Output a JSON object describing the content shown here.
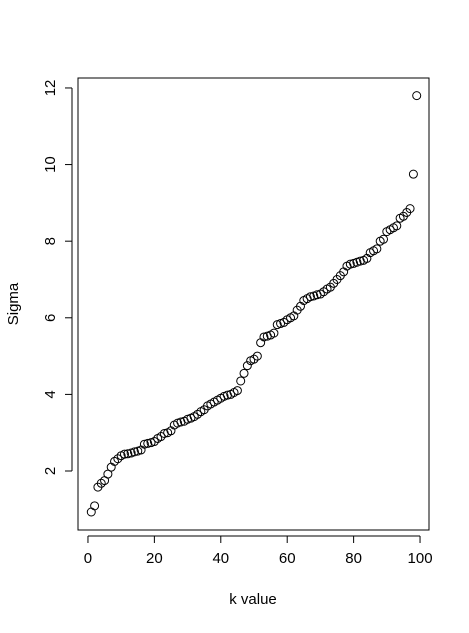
{
  "chart_data": {
    "type": "scatter",
    "x_label": "k value",
    "y_label": "Sigma",
    "x": [
      1,
      2,
      3,
      4,
      5,
      6,
      7,
      8,
      9,
      10,
      11,
      12,
      13,
      14,
      15,
      16,
      17,
      18,
      19,
      20,
      21,
      22,
      23,
      24,
      25,
      26,
      27,
      28,
      29,
      30,
      31,
      32,
      33,
      34,
      35,
      36,
      37,
      38,
      39,
      40,
      41,
      42,
      43,
      44,
      45,
      46,
      47,
      48,
      49,
      50,
      51,
      52,
      53,
      54,
      55,
      56,
      57,
      58,
      59,
      60,
      61,
      62,
      63,
      64,
      65,
      66,
      67,
      68,
      69,
      70,
      71,
      72,
      73,
      74,
      75,
      76,
      77,
      78,
      79,
      80,
      81,
      82,
      83,
      84,
      85,
      86,
      87,
      88,
      89,
      90,
      91,
      92,
      93,
      94,
      95,
      96,
      97,
      98,
      99
    ],
    "values": [
      0.93,
      1.09,
      1.58,
      1.68,
      1.75,
      1.92,
      2.1,
      2.25,
      2.32,
      2.4,
      2.44,
      2.45,
      2.47,
      2.5,
      2.52,
      2.55,
      2.7,
      2.72,
      2.74,
      2.77,
      2.85,
      2.9,
      2.98,
      3.0,
      3.05,
      3.2,
      3.25,
      3.28,
      3.3,
      3.35,
      3.38,
      3.42,
      3.48,
      3.55,
      3.6,
      3.7,
      3.75,
      3.8,
      3.85,
      3.9,
      3.95,
      3.98,
      4.0,
      4.05,
      4.1,
      4.35,
      4.55,
      4.75,
      4.88,
      4.92,
      5.0,
      5.35,
      5.5,
      5.52,
      5.55,
      5.6,
      5.82,
      5.85,
      5.88,
      5.95,
      6.0,
      6.05,
      6.2,
      6.3,
      6.45,
      6.5,
      6.55,
      6.57,
      6.6,
      6.62,
      6.68,
      6.75,
      6.8,
      6.9,
      7.0,
      7.1,
      7.2,
      7.35,
      7.4,
      7.42,
      7.45,
      7.48,
      7.5,
      7.55,
      7.7,
      7.75,
      7.8,
      8.0,
      8.05,
      8.25,
      8.3,
      8.35,
      8.4,
      8.6,
      8.65,
      8.75,
      8.85,
      9.75,
      11.8
    ],
    "color": "#000000",
    "xlim": [
      -3,
      102.7
    ],
    "ylim": [
      0.46,
      12.26
    ],
    "xticks": [
      0,
      20,
      40,
      60,
      80,
      100
    ],
    "yticks": [
      2,
      4,
      6,
      8,
      10,
      12
    ]
  }
}
